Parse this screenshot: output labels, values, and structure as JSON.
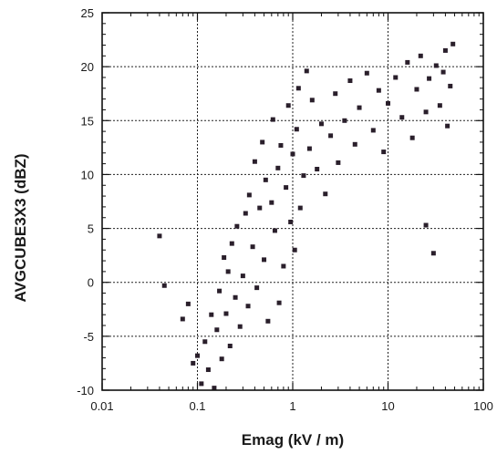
{
  "chart_data": {
    "type": "scatter",
    "title": "",
    "xlabel": "Emag  (kV / m)",
    "ylabel": "AVGCUBE3X3  (dBZ)",
    "x_scale": "log",
    "xlim": [
      0.01,
      100
    ],
    "ylim": [
      -10,
      25
    ],
    "x_ticks": [
      "0.01",
      "0.1",
      "1",
      "10",
      "100"
    ],
    "y_ticks": [
      "-10",
      "-5",
      "0",
      "5",
      "10",
      "15",
      "20",
      "25"
    ],
    "grid": true,
    "legend": "none",
    "marker_color": "#2a1f2b",
    "points": [
      [
        0.04,
        4.3
      ],
      [
        0.045,
        -0.3
      ],
      [
        0.07,
        -3.4
      ],
      [
        0.08,
        -2.0
      ],
      [
        0.09,
        -7.5
      ],
      [
        0.1,
        -6.8
      ],
      [
        0.11,
        -9.4
      ],
      [
        0.12,
        -5.5
      ],
      [
        0.13,
        -8.1
      ],
      [
        0.14,
        -3.0
      ],
      [
        0.15,
        -9.8
      ],
      [
        0.16,
        -4.4
      ],
      [
        0.17,
        -0.8
      ],
      [
        0.18,
        -7.1
      ],
      [
        0.19,
        2.3
      ],
      [
        0.2,
        -2.9
      ],
      [
        0.21,
        1.0
      ],
      [
        0.22,
        -5.9
      ],
      [
        0.23,
        3.6
      ],
      [
        0.25,
        -1.4
      ],
      [
        0.26,
        5.2
      ],
      [
        0.28,
        -4.1
      ],
      [
        0.3,
        0.6
      ],
      [
        0.32,
        6.4
      ],
      [
        0.34,
        -2.2
      ],
      [
        0.35,
        8.1
      ],
      [
        0.38,
        3.3
      ],
      [
        0.4,
        11.2
      ],
      [
        0.42,
        -0.5
      ],
      [
        0.45,
        6.9
      ],
      [
        0.48,
        13.0
      ],
      [
        0.5,
        2.1
      ],
      [
        0.52,
        9.5
      ],
      [
        0.55,
        -3.6
      ],
      [
        0.6,
        7.4
      ],
      [
        0.62,
        15.1
      ],
      [
        0.65,
        4.8
      ],
      [
        0.7,
        10.6
      ],
      [
        0.72,
        -1.9
      ],
      [
        0.75,
        12.7
      ],
      [
        0.8,
        1.5
      ],
      [
        0.85,
        8.8
      ],
      [
        0.9,
        16.4
      ],
      [
        0.95,
        5.6
      ],
      [
        1.0,
        11.9
      ],
      [
        1.05,
        3.0
      ],
      [
        1.1,
        14.2
      ],
      [
        1.15,
        18.0
      ],
      [
        1.2,
        6.9
      ],
      [
        1.3,
        9.9
      ],
      [
        1.4,
        19.6
      ],
      [
        1.5,
        12.4
      ],
      [
        1.6,
        16.9
      ],
      [
        1.8,
        10.5
      ],
      [
        2.0,
        14.7
      ],
      [
        2.2,
        8.2
      ],
      [
        2.5,
        13.6
      ],
      [
        2.8,
        17.5
      ],
      [
        3.0,
        11.1
      ],
      [
        3.5,
        15.0
      ],
      [
        4.0,
        18.7
      ],
      [
        4.5,
        12.8
      ],
      [
        5.0,
        16.2
      ],
      [
        6.0,
        19.4
      ],
      [
        7.0,
        14.1
      ],
      [
        8.0,
        17.8
      ],
      [
        9.0,
        12.1
      ],
      [
        10.0,
        16.6
      ],
      [
        12.0,
        19.0
      ],
      [
        14.0,
        15.3
      ],
      [
        16.0,
        20.4
      ],
      [
        18.0,
        13.4
      ],
      [
        20.0,
        17.9
      ],
      [
        22.0,
        21.0
      ],
      [
        25.0,
        15.8
      ],
      [
        27.0,
        18.9
      ],
      [
        30.0,
        2.7
      ],
      [
        32.0,
        20.1
      ],
      [
        35.0,
        16.4
      ],
      [
        38.0,
        19.5
      ],
      [
        40.0,
        21.5
      ],
      [
        42.0,
        14.5
      ],
      [
        45.0,
        18.2
      ],
      [
        48.0,
        22.1
      ],
      [
        25.0,
        5.3
      ]
    ]
  }
}
